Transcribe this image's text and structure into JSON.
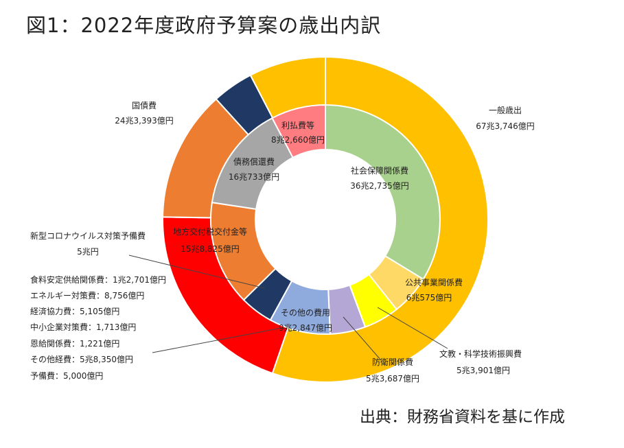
{
  "title": "図1：2022年度政府予算案の歳出内訳",
  "source": "出典：財務省資料を基に作成",
  "chart_data": {
    "type": "pie",
    "variant": "doughnut-two-level",
    "unit": "億円",
    "outer_ring": [
      {
        "key": "ippan",
        "name": "一般歳出",
        "value_text": "67兆3,746億円",
        "value": 673746,
        "color": "#FFC000"
      },
      {
        "key": "kokusai",
        "name": "国債費",
        "value_text": "24兆3,393億円",
        "value": 243393,
        "color": "#FF0000"
      },
      {
        "key": "chiho",
        "name": "地方交付税交付金等",
        "value_text": "15兆8,825億円",
        "value": 158825,
        "color": "#ED7D31"
      },
      {
        "key": "corona",
        "name": "新型コロナウイルス対策予備費",
        "value_text": "5兆円",
        "value": 50000,
        "color": "#1F3864"
      },
      {
        "key": "other",
        "name": "その他の費用",
        "value_text": "9兆2,847億円",
        "value": 92847,
        "color": "#FFC000"
      }
    ],
    "inner_ring": [
      {
        "key": "shakai",
        "name": "社会保障関係費",
        "value_text": "36兆2,735億円",
        "value": 362735,
        "color": "#A9D18E"
      },
      {
        "key": "koukyo",
        "name": "公共事業関係費",
        "value_text": "6兆575億円",
        "value": 60575,
        "color": "#FFD966"
      },
      {
        "key": "bunkyo",
        "name": "文教・科学技術振興費",
        "value_text": "5兆3,901億円",
        "value": 53901,
        "color": "#FFFF00"
      },
      {
        "key": "bouei",
        "name": "防衛関係費",
        "value_text": "5兆3,687億円",
        "value": 53687,
        "color": "#B4A7D6"
      },
      {
        "key": "sonota",
        "name": "その他の費用",
        "value_text": "9兆2,847億円",
        "value": 92847,
        "color": "#8FAADC"
      },
      {
        "key": "corona",
        "name": "新型コロナウイルス対策予備費",
        "value_text": "5兆円",
        "value": 50000,
        "color": "#1F3864"
      },
      {
        "key": "chiho",
        "name": "地方交付税交付金等",
        "value_text": "15兆8,825億円",
        "value": 158825,
        "color": "#ED7D31"
      },
      {
        "key": "shoukan",
        "name": "債務償還費",
        "value_text": "16兆733億円",
        "value": 160733,
        "color": "#A6A6A6"
      },
      {
        "key": "rihara",
        "name": "利払費等",
        "value_text": "8兆2,660億円",
        "value": 82660,
        "color": "#FF7C80"
      }
    ],
    "breakdown": [
      "食料安定供給関係費：1兆2,701億円",
      "エネルギー対策費：8,756億円",
      "経済協力費：5,105億円",
      "中小企業対策費：1,713億円",
      "恩給関係費：1,221億円",
      "その他経費：5兆8,350億円",
      "予備費：5,000億円"
    ]
  }
}
